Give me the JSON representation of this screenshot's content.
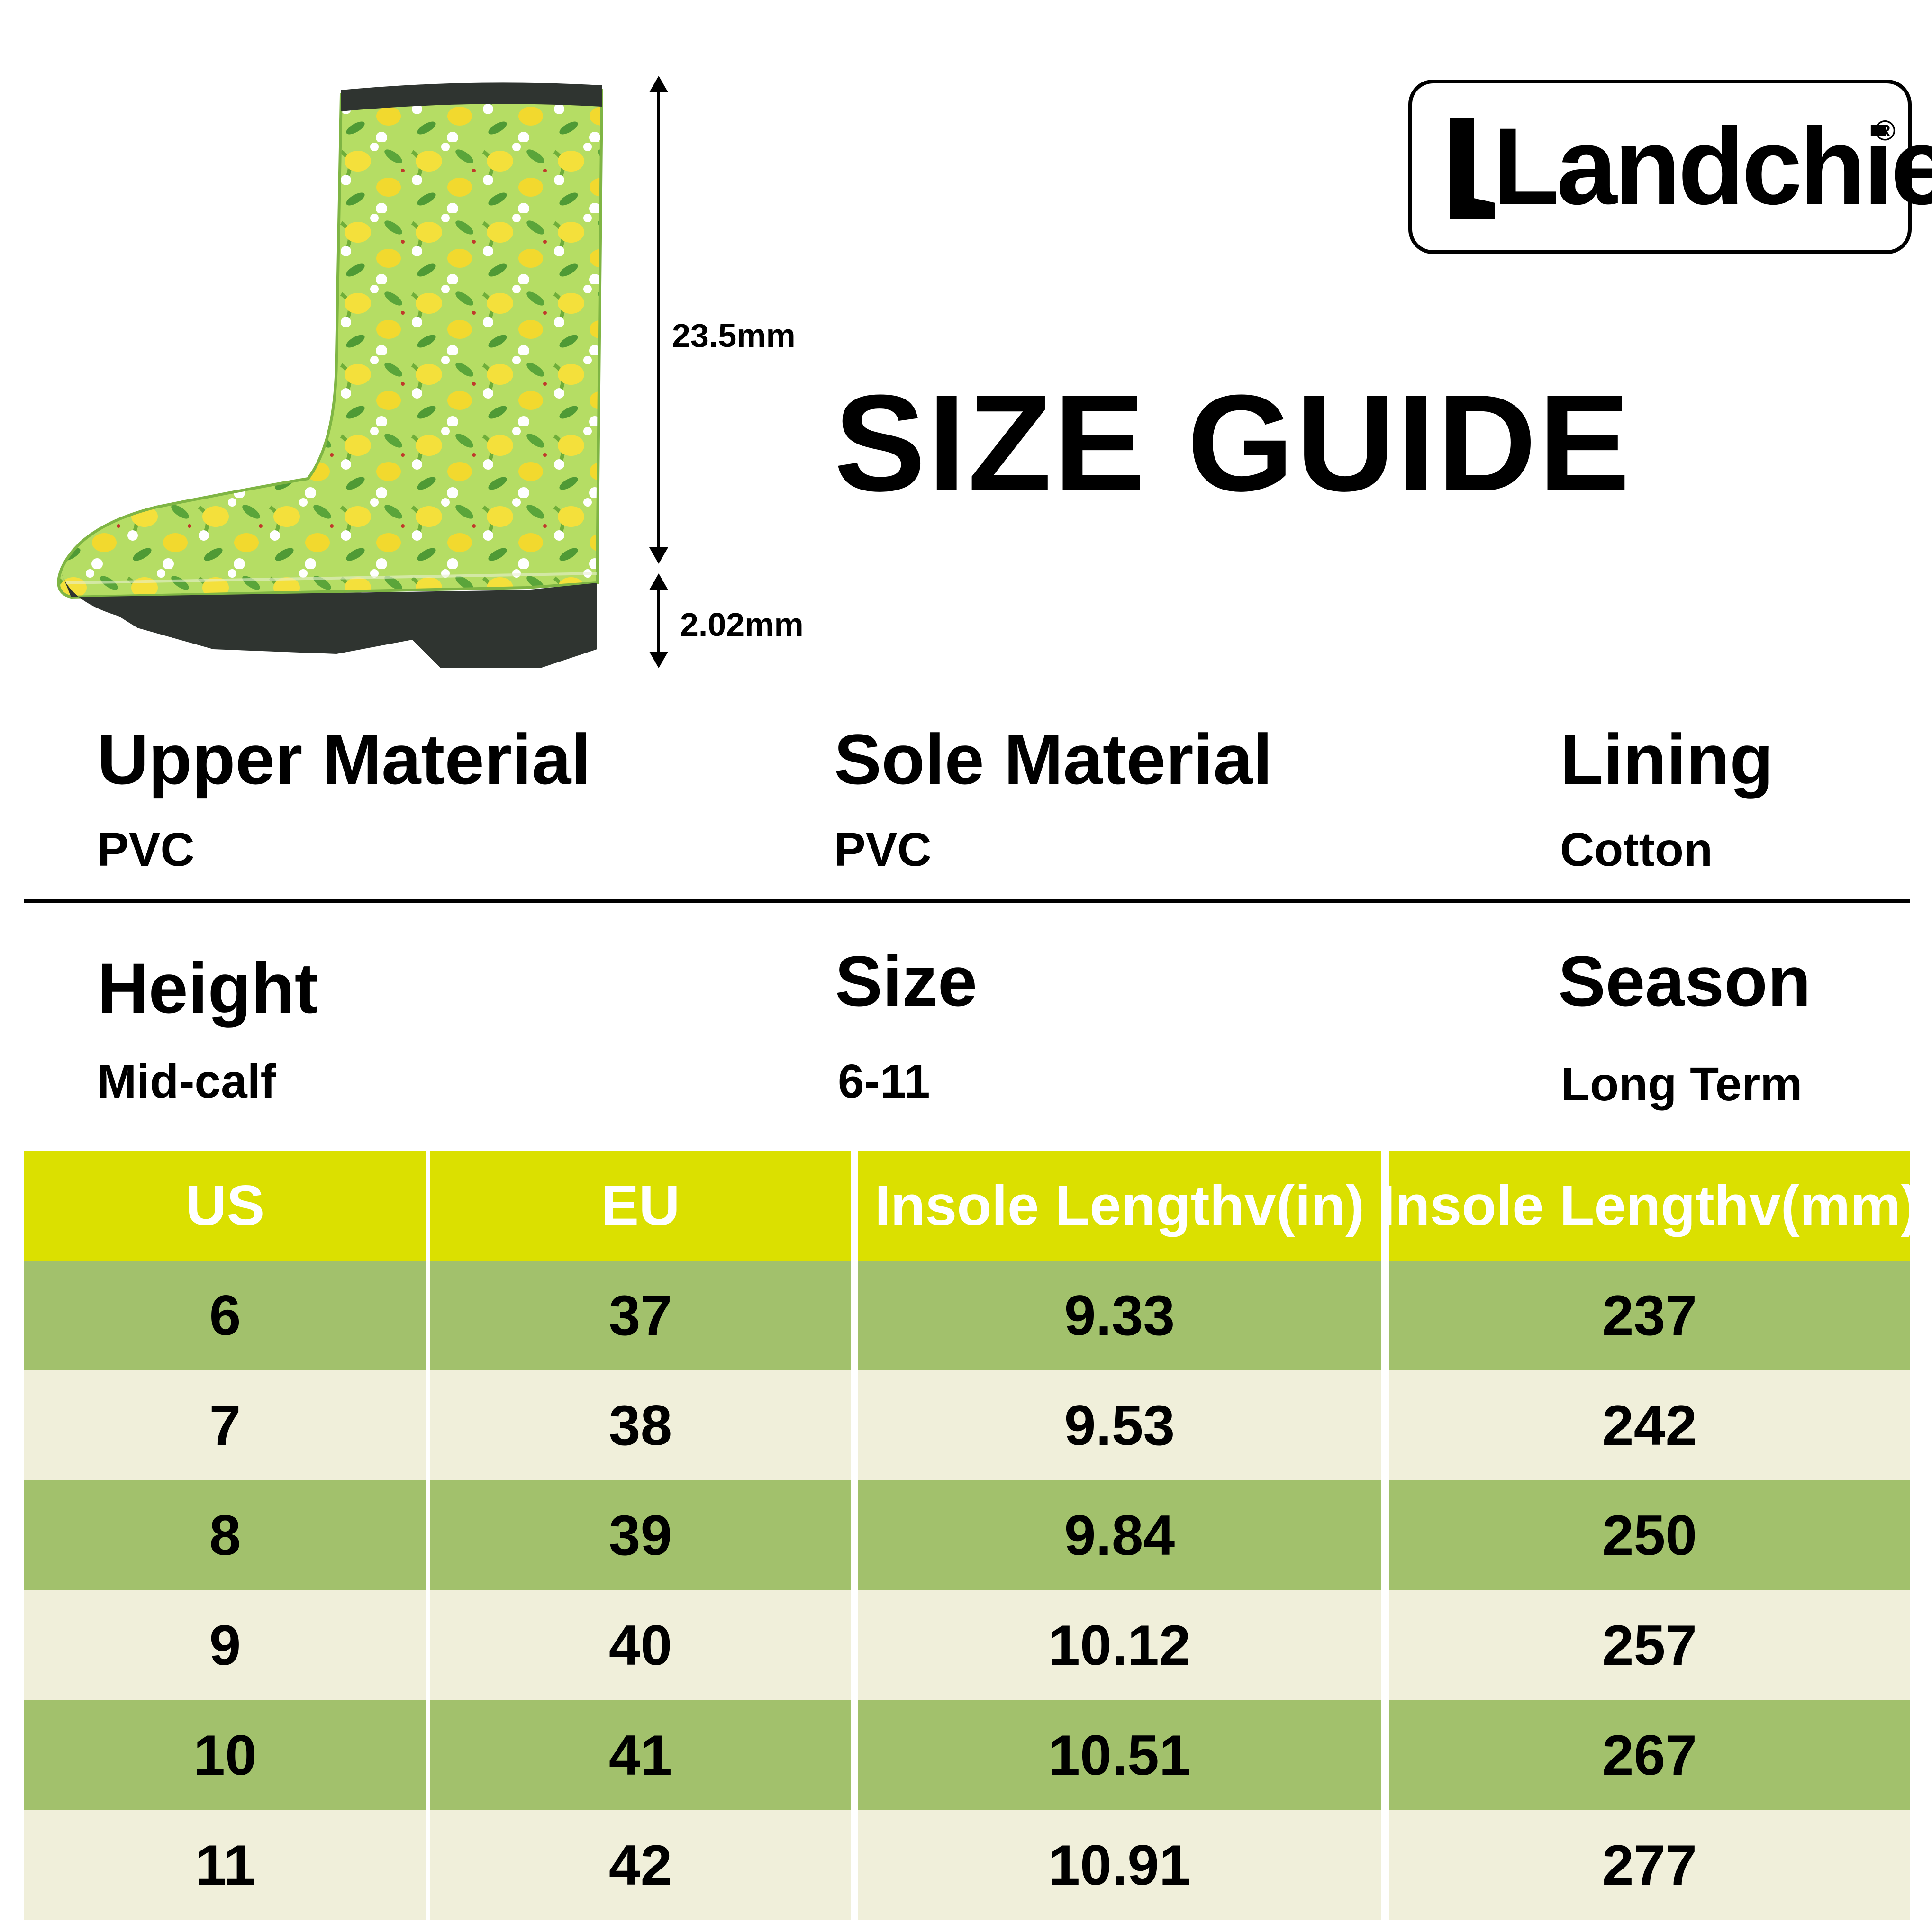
{
  "brand": {
    "name": "Landchief",
    "registered": "®"
  },
  "page_title": "SIZE GUIDE",
  "dimensions": {
    "shaft_height": "23.5mm",
    "heel_height": "2.02mm"
  },
  "attributes": {
    "upper_material": {
      "label": "Upper Material",
      "value": "PVC"
    },
    "sole_material": {
      "label": "Sole Material",
      "value": "PVC"
    },
    "lining": {
      "label": "Lining",
      "value": "Cotton"
    },
    "height": {
      "label": "Height",
      "value": "Mid-calf"
    },
    "size": {
      "label": "Size",
      "value": "6-11"
    },
    "season": {
      "label": "Season",
      "value": "Long Term"
    }
  },
  "colors": {
    "header_bg": "#dbe000",
    "row_dark": "#a2c16c",
    "row_light": "#f0efda",
    "boot_green": "#a9d857",
    "boot_sole": "#2f3430"
  },
  "size_table": {
    "headers": [
      "US",
      "EU",
      "Insole Lengthv(in)",
      "Insole Lengthv(mm)"
    ],
    "rows": [
      [
        "6",
        "37",
        "9.33",
        "237"
      ],
      [
        "7",
        "38",
        "9.53",
        "242"
      ],
      [
        "8",
        "39",
        "9.84",
        "250"
      ],
      [
        "9",
        "40",
        "10.12",
        "257"
      ],
      [
        "10",
        "41",
        "10.51",
        "267"
      ],
      [
        "11",
        "42",
        "10.91",
        "277"
      ]
    ]
  }
}
